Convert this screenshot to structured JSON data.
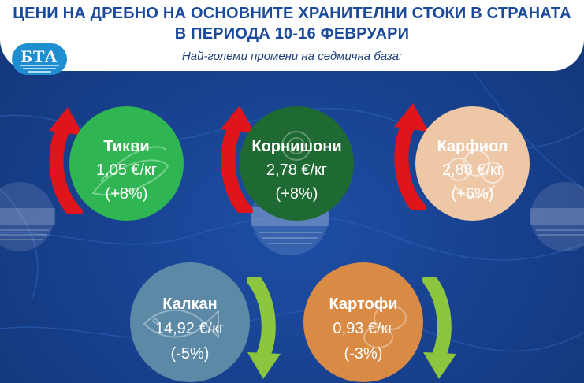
{
  "header": {
    "title_line1": "ЦЕНИ НА ДРЕБНО НА ОСНОВНИТЕ ХРАНИТЕЛНИ СТОКИ В СТРАНАТА",
    "title_line2": "В ПЕРИОДА 10-16 ФЕВРУАРИ",
    "subtitle": "Най-големи промени на седмична база:"
  },
  "logo": {
    "text": "БТА",
    "color": "#1f8ed1"
  },
  "colors": {
    "background": "#173f8c",
    "arrow_up": "#e0151b",
    "arrow_down": "#8cc63f"
  },
  "items": [
    {
      "name": "Тикви",
      "price": "1,05 €/кг",
      "change": "(+8%)",
      "direction": "up",
      "color": "#2fb551",
      "icon": "zucchini-icon"
    },
    {
      "name": "Корнишони",
      "price": "2,78 €/кг",
      "change": "(+8%)",
      "direction": "up",
      "color": "#1f6a33",
      "icon": "cucumber-icon"
    },
    {
      "name": "Карфиол",
      "price": "2,88 €/кг",
      "change": "(+6%)",
      "direction": "up",
      "color": "#edc7a6",
      "icon": "cauliflower-icon"
    },
    {
      "name": "Калкан",
      "price": "14,92 €/кг",
      "change": "(-5%)",
      "direction": "down",
      "color": "#5b89a6",
      "icon": "fish-icon"
    },
    {
      "name": "Картофи",
      "price": "0,93 €/кг",
      "change": "(-3%)",
      "direction": "down",
      "color": "#d98a45",
      "icon": "potato-icon"
    }
  ],
  "watermark": {
    "text": "БТА"
  }
}
